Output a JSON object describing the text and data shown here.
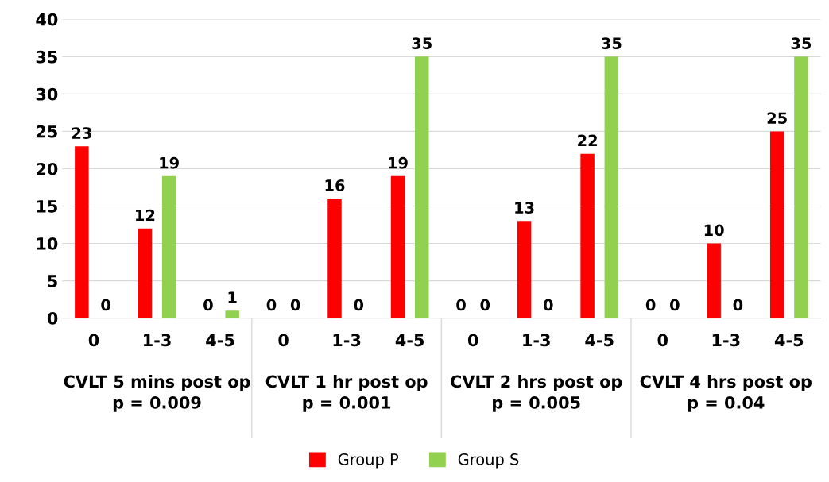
{
  "chart_data": {
    "type": "bar",
    "categories": [
      "0",
      "1-3",
      "4-5",
      "0",
      "1-3",
      "4-5",
      "0",
      "1-3",
      "4-5",
      "0",
      "1-3",
      "4-5"
    ],
    "series": [
      {
        "name": "Group P",
        "color": "#ff0000",
        "values": [
          23,
          12,
          0,
          0,
          16,
          19,
          0,
          13,
          22,
          0,
          10,
          25
        ]
      },
      {
        "name": "Group S",
        "color": "#92d050",
        "values": [
          0,
          19,
          1,
          0,
          0,
          35,
          0,
          0,
          35,
          0,
          0,
          35
        ]
      }
    ],
    "ylim": [
      0,
      40
    ],
    "yticks": [
      0,
      5,
      10,
      15,
      20,
      25,
      30,
      35,
      40
    ],
    "grid": "y",
    "legend": "bottom",
    "data_labels": true,
    "annotations": [
      "CVLT 5 mins post op\np = 0.009",
      "CVLT 1 hr post op\np = 0.001",
      "CVLT 2 hrs post op\np = 0.005",
      "CVLT 4 hrs post op\np = 0.04"
    ]
  }
}
